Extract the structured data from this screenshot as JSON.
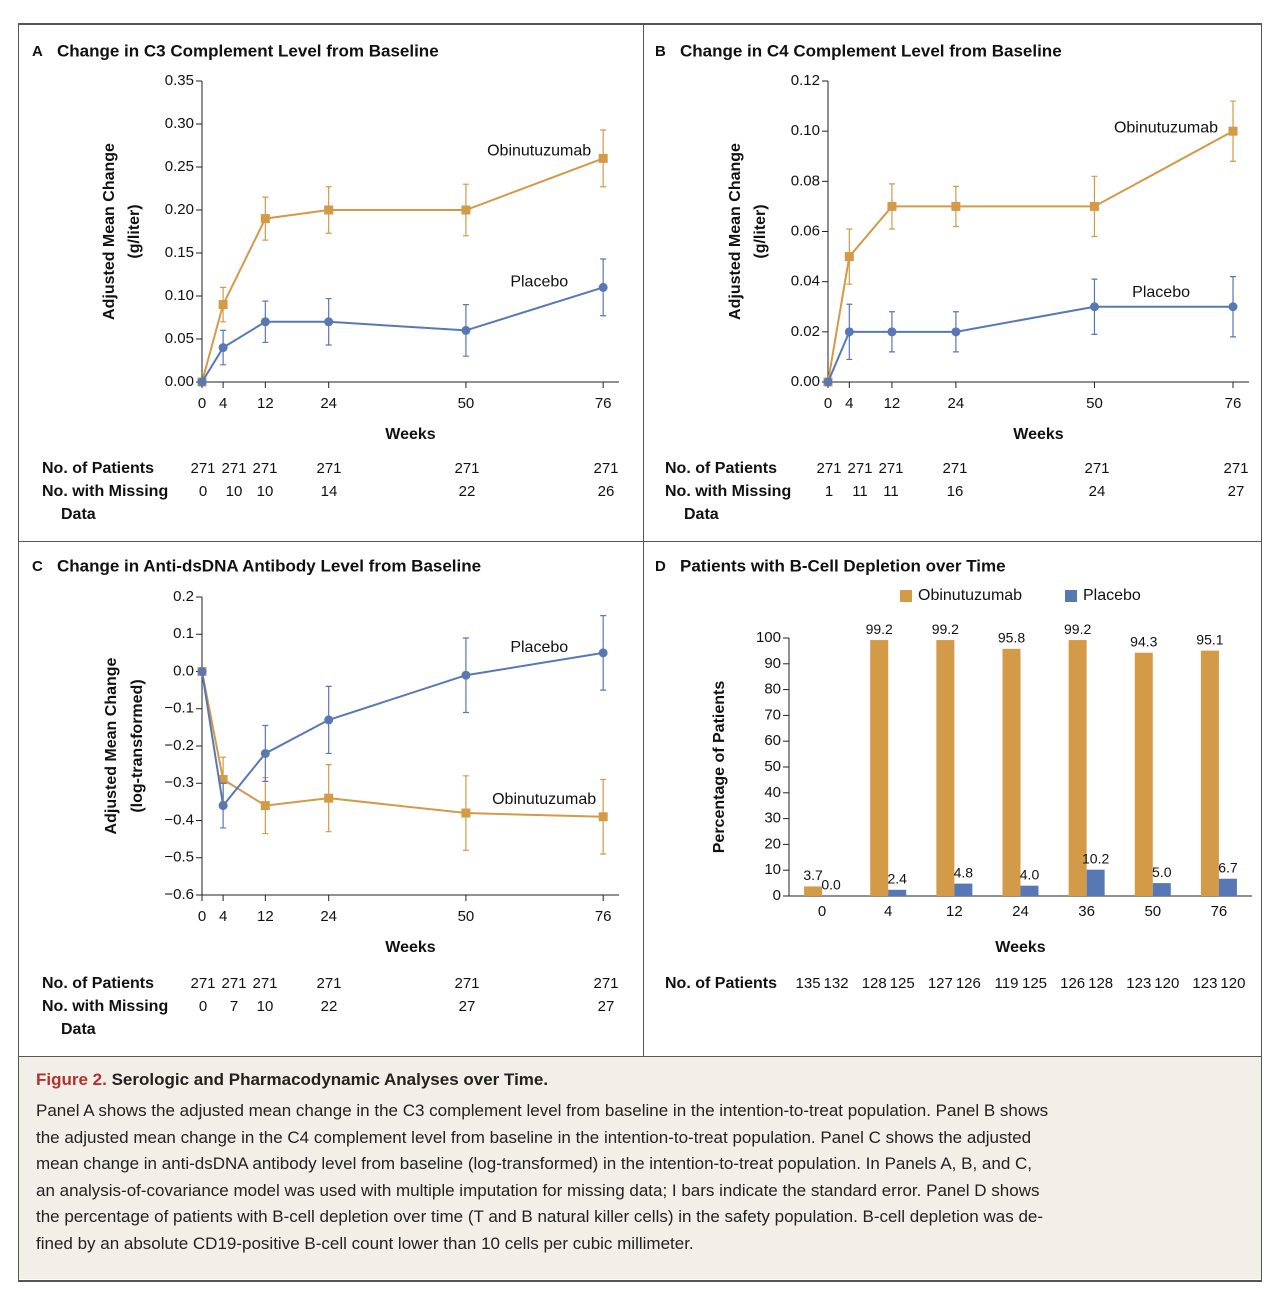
{
  "chart_data": [
    {
      "type": "line",
      "panel": "A",
      "title": "Change in C3 Complement Level from Baseline",
      "xlabel": "Weeks",
      "ylabel": [
        "Adjusted Mean Change",
        "(g/liter)"
      ],
      "x": [
        0,
        4,
        12,
        24,
        50,
        76
      ],
      "xlim": [
        0,
        79
      ],
      "xticks": [
        0,
        4,
        12,
        24,
        50,
        76
      ],
      "ylim": [
        0,
        0.35
      ],
      "yticks": [
        {
          "value": 0,
          "label": "0.00"
        },
        0.05,
        {
          "value": 0.1,
          "label": "0.10"
        },
        0.15,
        {
          "value": 0.2,
          "label": "0.20"
        },
        0.25,
        {
          "value": 0.3,
          "label": "0.30"
        },
        0.35
      ],
      "series": [
        {
          "name": "Obinutuzumab",
          "color": "#d39a48",
          "marker": "square",
          "values": [
            0,
            0.09,
            0.19,
            0.2,
            0.2,
            0.26
          ],
          "errors": [
            0,
            0.02,
            0.025,
            0.027,
            0.03,
            0.033
          ]
        },
        {
          "name": "Placebo",
          "color": "#5878b5",
          "marker": "circle",
          "values": [
            0,
            0.04,
            0.07,
            0.07,
            0.06,
            0.11
          ],
          "errors": [
            0,
            0.02,
            0.024,
            0.027,
            0.03,
            0.033
          ]
        }
      ],
      "table": {
        "rows": [
          {
            "label": [
              "No. of Patients"
            ],
            "values": [
              271,
              271,
              271,
              271,
              271,
              271
            ]
          },
          {
            "label": [
              "No. with Missing",
              "Data"
            ],
            "values": [
              0,
              10,
              10,
              14,
              22,
              26
            ]
          }
        ]
      }
    },
    {
      "type": "line",
      "panel": "B",
      "title": "Change in C4 Complement Level from Baseline",
      "xlabel": "Weeks",
      "ylabel": [
        "Adjusted Mean Change",
        "(g/liter)"
      ],
      "x": [
        0,
        4,
        12,
        24,
        50,
        76
      ],
      "xlim": [
        0,
        79
      ],
      "xticks": [
        0,
        4,
        12,
        24,
        50,
        76
      ],
      "ylim": [
        0,
        0.12
      ],
      "yticks": [
        {
          "value": 0,
          "label": "0.00"
        },
        0.02,
        0.04,
        0.06,
        0.08,
        {
          "value": 0.1,
          "label": "0.10"
        },
        0.12
      ],
      "series": [
        {
          "name": "Obinutuzumab",
          "color": "#d39a48",
          "marker": "square",
          "values": [
            0,
            0.05,
            0.07,
            0.07,
            0.07,
            0.1
          ],
          "errors": [
            0,
            0.011,
            0.009,
            0.008,
            0.012,
            0.012
          ]
        },
        {
          "name": "Placebo",
          "color": "#5878b5",
          "marker": "circle",
          "values": [
            0,
            0.02,
            0.02,
            0.02,
            0.03,
            0.03
          ],
          "errors": [
            0,
            0.011,
            0.008,
            0.008,
            0.011,
            0.012
          ]
        }
      ],
      "table": {
        "rows": [
          {
            "label": [
              "No. of Patients"
            ],
            "values": [
              271,
              271,
              271,
              271,
              271,
              271
            ]
          },
          {
            "label": [
              "No. with Missing",
              "Data"
            ],
            "values": [
              1,
              11,
              11,
              16,
              24,
              27
            ]
          }
        ]
      }
    },
    {
      "type": "line",
      "panel": "C",
      "title": "Change in Anti-dsDNA Antibody Level from Baseline",
      "xlabel": "Weeks",
      "ylabel": [
        "Adjusted Mean Change",
        "(log-transformed)"
      ],
      "x": [
        0,
        4,
        12,
        24,
        50,
        76
      ],
      "xlim": [
        0,
        79
      ],
      "xticks": [
        0,
        4,
        12,
        24,
        50,
        76
      ],
      "ylim": [
        -0.6,
        0.2
      ],
      "yticks": [
        {
          "value": -0.6,
          "label": "−0.6"
        },
        {
          "value": -0.5,
          "label": "−0.5"
        },
        {
          "value": -0.4,
          "label": "−0.4"
        },
        {
          "value": -0.3,
          "label": "−0.3"
        },
        {
          "value": -0.2,
          "label": "−0.2"
        },
        {
          "value": -0.1,
          "label": "−0.1"
        },
        {
          "value": 0,
          "label": "0.0"
        },
        0.1,
        0.2
      ],
      "series": [
        {
          "name": "Obinutuzumab",
          "color": "#d39a48",
          "marker": "square",
          "values": [
            0,
            -0.29,
            -0.36,
            -0.34,
            -0.38,
            -0.39
          ],
          "errors": [
            0,
            0.06,
            0.075,
            0.09,
            0.1,
            0.1
          ]
        },
        {
          "name": "Placebo",
          "color": "#5878b5",
          "marker": "circle",
          "values": [
            0,
            -0.36,
            -0.22,
            -0.13,
            -0.01,
            0.05
          ],
          "errors": [
            0,
            0.06,
            0.075,
            0.09,
            0.1,
            0.1
          ]
        }
      ],
      "table": {
        "rows": [
          {
            "label": [
              "No. of Patients"
            ],
            "values": [
              271,
              271,
              271,
              271,
              271,
              271
            ]
          },
          {
            "label": [
              "No. with Missing",
              "Data"
            ],
            "values": [
              0,
              7,
              10,
              22,
              27,
              27
            ]
          }
        ]
      }
    },
    {
      "type": "bar",
      "panel": "D",
      "title": "Patients with B-Cell Depletion over Time",
      "xlabel": "Weeks",
      "ylabel": "Percentage of Patients",
      "categories": [
        "0",
        "4",
        "12",
        "24",
        "36",
        "50",
        "76"
      ],
      "ylim": [
        0,
        100
      ],
      "yticks": [
        0,
        10,
        20,
        30,
        40,
        50,
        60,
        70,
        80,
        90,
        100
      ],
      "series": [
        {
          "name": "Obinutuzumab",
          "color": "#d39a48",
          "values": [
            3.7,
            99.2,
            99.2,
            95.8,
            99.2,
            94.3,
            95.1
          ],
          "value_labels": [
            "3.7",
            "99.2",
            "99.2",
            "95.8",
            "99.2",
            "94.3",
            "95.1"
          ]
        },
        {
          "name": "Placebo",
          "color": "#5878b5",
          "values": [
            0,
            2.4,
            4.8,
            4,
            10.2,
            5,
            6.7
          ],
          "value_labels": [
            "0.0",
            "2.4",
            "4.8",
            "4.0",
            "10.2",
            "5.0",
            "6.7"
          ]
        }
      ],
      "table": {
        "rows": [
          {
            "label": [
              "No. of Patients"
            ],
            "values": [
              135,
              132,
              128,
              125,
              127,
              126,
              119,
              125,
              126,
              128,
              123,
              120,
              123,
              120
            ]
          }
        ]
      }
    }
  ],
  "caption": {
    "label": "Figure 2.",
    "title": "Serologic and Pharmacodynamic Analyses over Time.",
    "lines": [
      "Panel A shows the adjusted mean change in the C3 complement level from baseline in the intention-to-treat population. Panel B shows",
      "the adjusted mean change in the C4 complement level from baseline in the intention-to-treat population. Panel C shows the adjusted",
      "mean change in anti-dsDNA antibody level from baseline (log-transformed) in the intention-to-treat population. In Panels A, B, and C,",
      "an analysis-of-covariance model was used with multiple imputation for missing data; I bars indicate the standard error. Panel D shows",
      "the percentage of patients with B-cell depletion over time (T and B natural killer cells) in the safety population. B-cell depletion was de-",
      "fined by an absolute CD19-positive B-cell count lower than 10 cells per cubic millimeter."
    ]
  }
}
